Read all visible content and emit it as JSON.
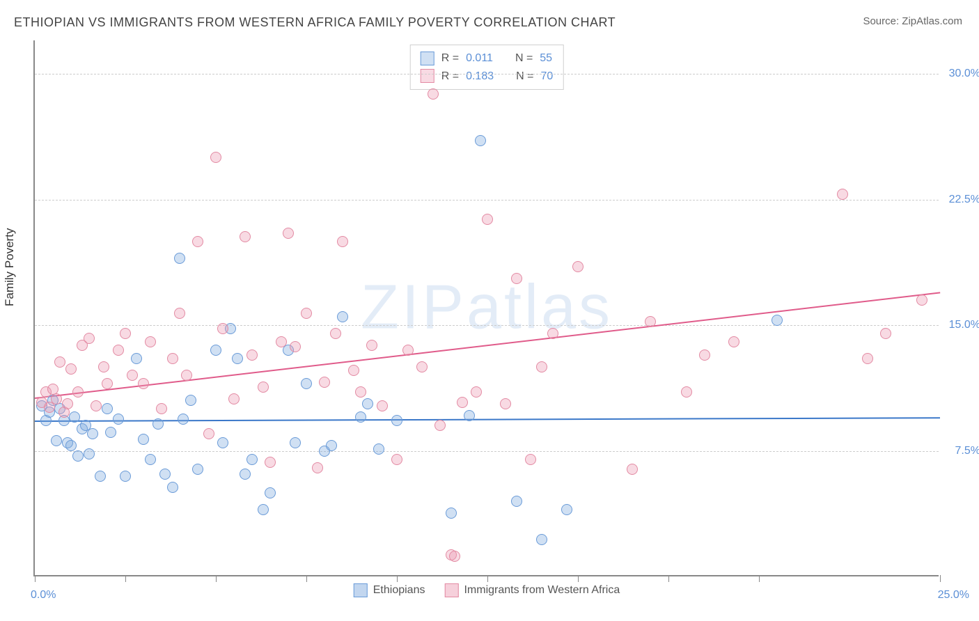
{
  "title": "ETHIOPIAN VS IMMIGRANTS FROM WESTERN AFRICA FAMILY POVERTY CORRELATION CHART",
  "source_label": "Source: ZipAtlas.com",
  "ylabel": "Family Poverty",
  "watermark": "ZIPatlas",
  "chart": {
    "type": "scatter",
    "background_color": "#ffffff",
    "grid_color": "#cccccc",
    "axis_color": "#888888",
    "tick_label_color": "#5b8fd6",
    "xlim": [
      0,
      25
    ],
    "ylim": [
      0,
      32
    ],
    "yticks": [
      7.5,
      15.0,
      22.5,
      30.0
    ],
    "ytick_labels": [
      "7.5%",
      "15.0%",
      "22.5%",
      "30.0%"
    ],
    "x_label_min": "0.0%",
    "x_label_max": "25.0%",
    "xtick_positions": [
      0,
      2.5,
      5,
      7.5,
      10,
      12.5,
      15,
      17.5,
      20,
      25
    ],
    "marker_radius": 8,
    "marker_stroke_width": 1.5,
    "series": [
      {
        "name": "Ethiopians",
        "fill": "rgba(120,165,220,0.35)",
        "stroke": "#6a9bd8",
        "R": "0.011",
        "N": "55",
        "trend": {
          "x1": 0,
          "y1": 9.3,
          "x2": 25,
          "y2": 9.5,
          "color": "#3b78c9",
          "width": 2
        },
        "points": [
          [
            0.2,
            10.2
          ],
          [
            0.3,
            9.3
          ],
          [
            0.4,
            9.8
          ],
          [
            0.5,
            10.5
          ],
          [
            0.6,
            8.1
          ],
          [
            0.7,
            10.0
          ],
          [
            0.8,
            9.3
          ],
          [
            0.9,
            8.0
          ],
          [
            1.0,
            7.8
          ],
          [
            1.1,
            9.5
          ],
          [
            1.2,
            7.2
          ],
          [
            1.3,
            8.8
          ],
          [
            1.4,
            9.0
          ],
          [
            1.5,
            7.3
          ],
          [
            1.6,
            8.5
          ],
          [
            1.8,
            6.0
          ],
          [
            2.0,
            10.0
          ],
          [
            2.1,
            8.6
          ],
          [
            2.3,
            9.4
          ],
          [
            2.5,
            6.0
          ],
          [
            2.8,
            13.0
          ],
          [
            3.0,
            8.2
          ],
          [
            3.2,
            7.0
          ],
          [
            3.4,
            9.1
          ],
          [
            3.6,
            6.1
          ],
          [
            3.8,
            5.3
          ],
          [
            4.0,
            19.0
          ],
          [
            4.1,
            9.4
          ],
          [
            4.3,
            10.5
          ],
          [
            4.5,
            6.4
          ],
          [
            5.0,
            13.5
          ],
          [
            5.2,
            8.0
          ],
          [
            5.4,
            14.8
          ],
          [
            5.6,
            13.0
          ],
          [
            5.8,
            6.1
          ],
          [
            6.0,
            7.0
          ],
          [
            6.3,
            4.0
          ],
          [
            6.5,
            5.0
          ],
          [
            7.0,
            13.5
          ],
          [
            7.2,
            8.0
          ],
          [
            7.5,
            11.5
          ],
          [
            8.0,
            7.5
          ],
          [
            8.2,
            7.8
          ],
          [
            8.5,
            15.5
          ],
          [
            9.0,
            9.5
          ],
          [
            9.2,
            10.3
          ],
          [
            9.5,
            7.6
          ],
          [
            10.0,
            9.3
          ],
          [
            11.5,
            3.8
          ],
          [
            12.0,
            9.6
          ],
          [
            12.3,
            26.0
          ],
          [
            13.3,
            4.5
          ],
          [
            14.0,
            2.2
          ],
          [
            14.7,
            4.0
          ],
          [
            20.5,
            15.3
          ]
        ]
      },
      {
        "name": "Immigrants from Western Africa",
        "fill": "rgba(235,150,175,0.35)",
        "stroke": "#e38aa3",
        "R": "0.183",
        "N": "70",
        "trend": {
          "x1": 0,
          "y1": 10.7,
          "x2": 25,
          "y2": 17.0,
          "color": "#e05b8a",
          "width": 2
        },
        "points": [
          [
            0.2,
            10.4
          ],
          [
            0.3,
            11.0
          ],
          [
            0.4,
            10.1
          ],
          [
            0.5,
            11.2
          ],
          [
            0.6,
            10.6
          ],
          [
            0.7,
            12.8
          ],
          [
            0.8,
            9.8
          ],
          [
            0.9,
            10.3
          ],
          [
            1.0,
            12.4
          ],
          [
            1.2,
            11.0
          ],
          [
            1.3,
            13.8
          ],
          [
            1.5,
            14.2
          ],
          [
            1.7,
            10.2
          ],
          [
            1.9,
            12.5
          ],
          [
            2.0,
            11.5
          ],
          [
            2.3,
            13.5
          ],
          [
            2.5,
            14.5
          ],
          [
            2.7,
            12.0
          ],
          [
            3.0,
            11.5
          ],
          [
            3.2,
            14.0
          ],
          [
            3.5,
            10.0
          ],
          [
            3.8,
            13.0
          ],
          [
            4.0,
            15.7
          ],
          [
            4.2,
            12.0
          ],
          [
            4.5,
            20.0
          ],
          [
            4.8,
            8.5
          ],
          [
            5.0,
            25.0
          ],
          [
            5.2,
            14.8
          ],
          [
            5.5,
            10.6
          ],
          [
            5.8,
            20.3
          ],
          [
            6.0,
            13.2
          ],
          [
            6.3,
            11.3
          ],
          [
            6.5,
            6.8
          ],
          [
            6.8,
            14.0
          ],
          [
            7.0,
            20.5
          ],
          [
            7.2,
            13.7
          ],
          [
            7.5,
            15.7
          ],
          [
            7.8,
            6.5
          ],
          [
            8.0,
            11.6
          ],
          [
            8.3,
            14.5
          ],
          [
            8.5,
            20.0
          ],
          [
            8.8,
            12.3
          ],
          [
            9.0,
            11.0
          ],
          [
            9.3,
            13.8
          ],
          [
            9.6,
            10.2
          ],
          [
            10.0,
            7.0
          ],
          [
            10.3,
            13.5
          ],
          [
            10.7,
            12.5
          ],
          [
            11.0,
            28.8
          ],
          [
            11.2,
            9.0
          ],
          [
            11.5,
            1.3
          ],
          [
            11.6,
            1.2
          ],
          [
            11.8,
            10.4
          ],
          [
            12.2,
            11.0
          ],
          [
            12.5,
            21.3
          ],
          [
            13.0,
            10.3
          ],
          [
            13.3,
            17.8
          ],
          [
            13.7,
            7.0
          ],
          [
            14.0,
            12.5
          ],
          [
            14.3,
            14.5
          ],
          [
            15.0,
            18.5
          ],
          [
            16.5,
            6.4
          ],
          [
            17.0,
            15.2
          ],
          [
            18.0,
            11.0
          ],
          [
            18.5,
            13.2
          ],
          [
            19.3,
            14.0
          ],
          [
            22.3,
            22.8
          ],
          [
            23.0,
            13.0
          ],
          [
            23.5,
            14.5
          ],
          [
            24.5,
            16.5
          ]
        ]
      }
    ],
    "legend_top": {
      "r_label": "R =",
      "n_label": "N ="
    },
    "legend_bottom": [
      {
        "swatch_fill": "rgba(120,165,220,0.45)",
        "swatch_stroke": "#6a9bd8",
        "label": "Ethiopians"
      },
      {
        "swatch_fill": "rgba(235,150,175,0.45)",
        "swatch_stroke": "#e38aa3",
        "label": "Immigrants from Western Africa"
      }
    ]
  }
}
